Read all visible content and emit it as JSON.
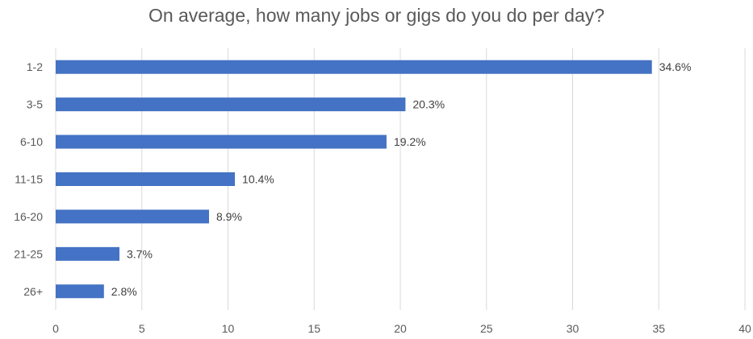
{
  "chart_data": {
    "type": "bar",
    "orientation": "horizontal",
    "title": "On average, how many jobs or gigs do you do per day?",
    "categories": [
      "1-2",
      "3-5",
      "6-10",
      "11-15",
      "16-20",
      "21-25",
      "26+"
    ],
    "values": [
      34.6,
      20.3,
      19.2,
      10.4,
      8.9,
      3.7,
      2.8
    ],
    "data_labels": [
      "34.6%",
      "20.3%",
      "19.2%",
      "10.4%",
      "8.9%",
      "3.7%",
      "2.8%"
    ],
    "xlim": [
      0,
      40
    ],
    "x_ticks": [
      0,
      5,
      10,
      15,
      20,
      25,
      30,
      35,
      40
    ],
    "grid": "vertical",
    "legend": "none",
    "bar_color": "#4472C4",
    "grid_color": "#D9D9D9"
  }
}
